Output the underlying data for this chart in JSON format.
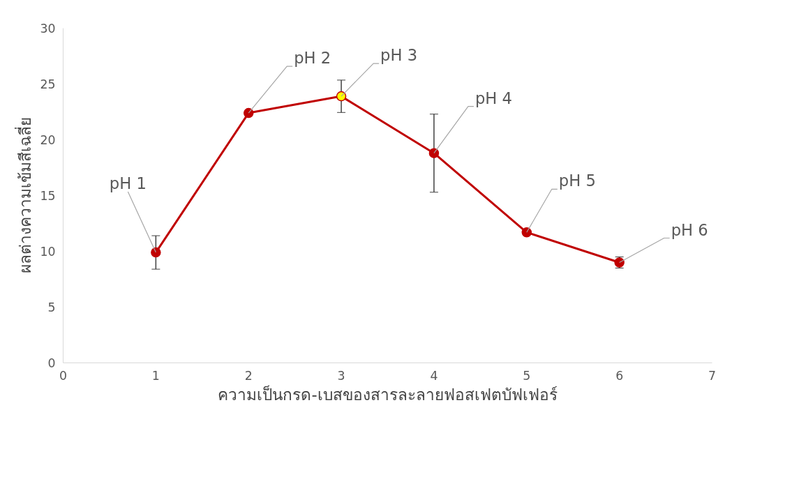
{
  "chart_data": {
    "type": "line",
    "xlabel": "ความเป็นกรด-เบสของสารละลายฟอสเฟตบัฟเฟอร์",
    "ylabel": "ผลต่างความเข้มสีเฉลี่ย",
    "x": [
      1,
      2,
      3,
      4,
      5,
      6
    ],
    "series": [
      {
        "color": "#c00000",
        "values": [
          9.9,
          22.4,
          23.9,
          18.8,
          11.7,
          9.0
        ],
        "colors": [
          "#c00000",
          "#c00000",
          "#ffff00",
          "#c00000",
          "#c00000",
          "#c00000"
        ],
        "errors": [
          1.5,
          null,
          1.45,
          3.5,
          null,
          0.5
        ]
      }
    ],
    "annotations": [
      {
        "text": "pH 1",
        "x": 1,
        "y": 9.9
      },
      {
        "text": "pH 2",
        "x": 2,
        "y": 22.4
      },
      {
        "text": "pH 3",
        "x": 3,
        "y": 23.9
      },
      {
        "text": "pH 4",
        "x": 4,
        "y": 18.8
      },
      {
        "text": "pH 5",
        "x": 5,
        "y": 11.7
      },
      {
        "text": "pH 6",
        "x": 6,
        "y": 9.0
      }
    ],
    "xlim": [
      0,
      7
    ],
    "ylim": [
      0,
      30
    ],
    "xticks": [
      0,
      1,
      2,
      3,
      4,
      5,
      6,
      7
    ],
    "yticks": [
      0,
      5,
      10,
      15,
      20,
      25,
      30
    ],
    "grid": false,
    "marker": "circle",
    "line_style": "solid"
  }
}
